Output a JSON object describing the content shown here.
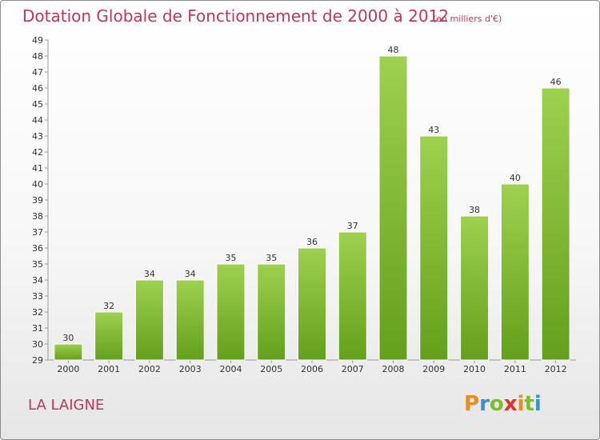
{
  "header": {
    "title": "Dotation Globale de Fonctionnement de 2000 à 2012",
    "subtitle": "(en milliers d'€)"
  },
  "footer": {
    "town": "LA LAIGNE",
    "logo": "Proxiti",
    "logo_colors": [
      "#f08a1e",
      "#3b8fd6",
      "#7cbf2a",
      "#e0332a",
      "#f08a1e",
      "#7cbf2a",
      "#3b8fd6"
    ]
  },
  "chart_data": {
    "type": "bar",
    "title": "Dotation Globale de Fonctionnement de 2000 à 2012",
    "unit_label": "(en milliers d'€)",
    "categories": [
      "2000",
      "2001",
      "2002",
      "2003",
      "2004",
      "2005",
      "2006",
      "2007",
      "2008",
      "2009",
      "2010",
      "2011",
      "2012"
    ],
    "values": [
      30,
      32,
      34,
      34,
      35,
      35,
      36,
      37,
      48,
      43,
      38,
      40,
      46
    ],
    "ylim": [
      29,
      49
    ],
    "yticks": [
      29,
      30,
      31,
      32,
      33,
      34,
      35,
      36,
      37,
      38,
      39,
      40,
      41,
      42,
      43,
      44,
      45,
      46,
      47,
      48,
      49
    ],
    "grid": false,
    "bar_color_top": "#9fd050",
    "bar_color_bottom": "#63a01c"
  }
}
